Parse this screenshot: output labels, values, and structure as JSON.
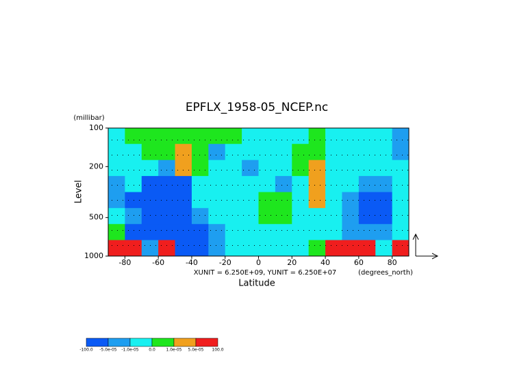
{
  "chart_data": {
    "type": "contour",
    "title": "EPFLX_1958-05_NCEP.nc",
    "y_unit": "(millibar)",
    "y_label": "Level",
    "x_label": "Latitude",
    "x_unit": "(degrees_north)",
    "vector_scale": "XUNIT = 6.250E+09, YUNIT = 6.250E+07",
    "xlim": [
      -90,
      90
    ],
    "xticks": [
      -80,
      -60,
      -40,
      -20,
      0,
      20,
      40,
      60,
      80
    ],
    "ylim": [
      100,
      1000
    ],
    "yticks": [
      100,
      200,
      500,
      1000
    ],
    "log_y": true,
    "x": [
      -85,
      -75,
      -65,
      -55,
      -45,
      -35,
      -25,
      -15,
      -5,
      5,
      15,
      25,
      35,
      45,
      55,
      65,
      75,
      85
    ],
    "y": [
      115,
      154,
      205,
      274,
      365,
      487,
      649,
      866
    ],
    "z": [
      [
        -5e-06,
        5e-06,
        5e-06,
        5e-06,
        5e-06,
        5e-06,
        5e-06,
        5e-06,
        -5e-06,
        -5e-06,
        -5e-06,
        -5e-06,
        5e-06,
        -5e-06,
        -5e-06,
        -5e-06,
        -5e-06,
        -3e-05
      ],
      [
        -5e-06,
        -5e-06,
        5e-06,
        5e-06,
        3e-05,
        5e-06,
        -3e-05,
        -5e-06,
        -5e-06,
        -5e-06,
        -5e-06,
        5e-06,
        5e-06,
        -5e-06,
        -5e-06,
        -5e-06,
        -5e-06,
        -3e-05
      ],
      [
        -5e-06,
        -5e-06,
        -5e-06,
        -3e-05,
        3e-05,
        5e-06,
        -5e-06,
        -5e-06,
        -3e-05,
        -5e-06,
        -5e-06,
        5e-06,
        3e-05,
        -5e-06,
        -5e-06,
        -5e-06,
        -5e-06,
        -5e-06
      ],
      [
        -3e-05,
        -5e-06,
        -7e-05,
        -7e-05,
        -7e-05,
        -5e-06,
        -5e-06,
        -5e-06,
        -5e-06,
        -5e-06,
        -3e-05,
        -5e-06,
        3e-05,
        -5e-06,
        -5e-06,
        -3e-05,
        -3e-05,
        -5e-06
      ],
      [
        -3e-05,
        -7e-05,
        -7e-05,
        -7e-05,
        -7e-05,
        -5e-06,
        -5e-06,
        -5e-06,
        -5e-06,
        5e-06,
        5e-06,
        -5e-06,
        3e-05,
        -5e-06,
        -3e-05,
        -7e-05,
        -7e-05,
        -5e-06
      ],
      [
        -5e-06,
        -3e-05,
        -7e-05,
        -7e-05,
        -7e-05,
        -3e-05,
        -5e-06,
        -5e-06,
        -5e-06,
        5e-06,
        5e-06,
        -5e-06,
        -5e-06,
        -5e-06,
        -3e-05,
        -7e-05,
        -7e-05,
        -5e-06
      ],
      [
        5e-06,
        -7e-05,
        -7e-05,
        -7e-05,
        -7e-05,
        -7e-05,
        -3e-05,
        -5e-06,
        -5e-06,
        -5e-06,
        -5e-06,
        -5e-06,
        -5e-06,
        -5e-06,
        -3e-05,
        -3e-05,
        -3e-05,
        -5e-06
      ],
      [
        0.0002,
        0.0002,
        -3e-05,
        0.0002,
        -7e-05,
        -7e-05,
        -3e-05,
        -5e-06,
        -5e-06,
        -5e-06,
        -5e-06,
        -5e-06,
        5e-06,
        0.0002,
        0.0002,
        0.0002,
        -5e-06,
        0.0002
      ]
    ],
    "levels": [
      {
        "value": -100,
        "label": "-100.0"
      },
      {
        "value": -5e-05,
        "label": "-5.0e-05"
      },
      {
        "value": -1e-05,
        "label": "-1.0e-05"
      },
      {
        "value": 0,
        "label": "0.0"
      },
      {
        "value": 1e-05,
        "label": "1.0e-05"
      },
      {
        "value": 5e-05,
        "label": "5.0e-05"
      },
      {
        "value": 100,
        "label": "100.0"
      }
    ],
    "colors": [
      "#0a5af5",
      "#1e9ef0",
      "#18f0f0",
      "#1ee61e",
      "#f0a01e",
      "#f01e1e"
    ]
  }
}
